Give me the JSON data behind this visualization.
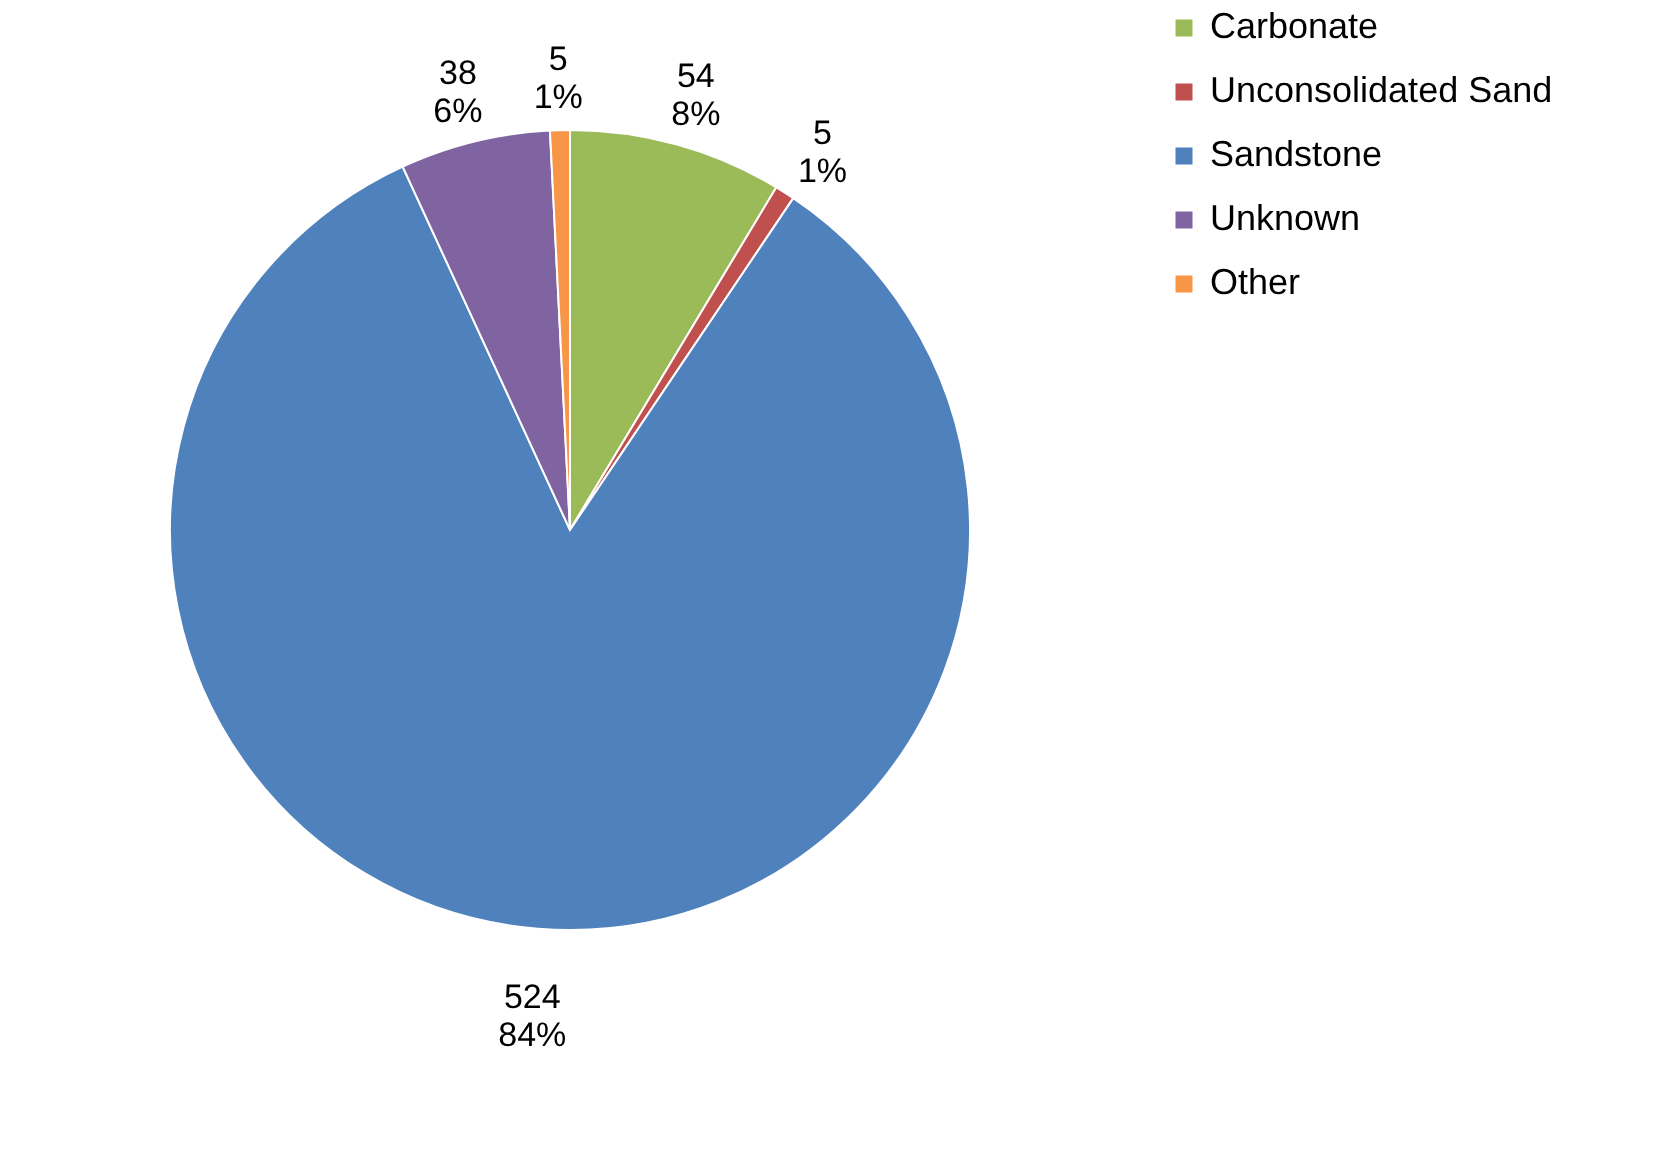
{
  "chart_data": {
    "type": "pie",
    "categories": [
      "Carbonate",
      "Unconsolidated Sand",
      "Sandstone",
      "Unknown",
      "Other"
    ],
    "values": [
      54,
      5,
      524,
      38,
      5
    ],
    "colors": [
      "#9bbb59",
      "#c0504d",
      "#4f81bd",
      "#8064a2",
      "#f79646"
    ],
    "value_labels": [
      "54\n8%",
      "5\n1%",
      "524\n84%",
      "38\n6%",
      "5\n1%"
    ],
    "legend": "right"
  }
}
